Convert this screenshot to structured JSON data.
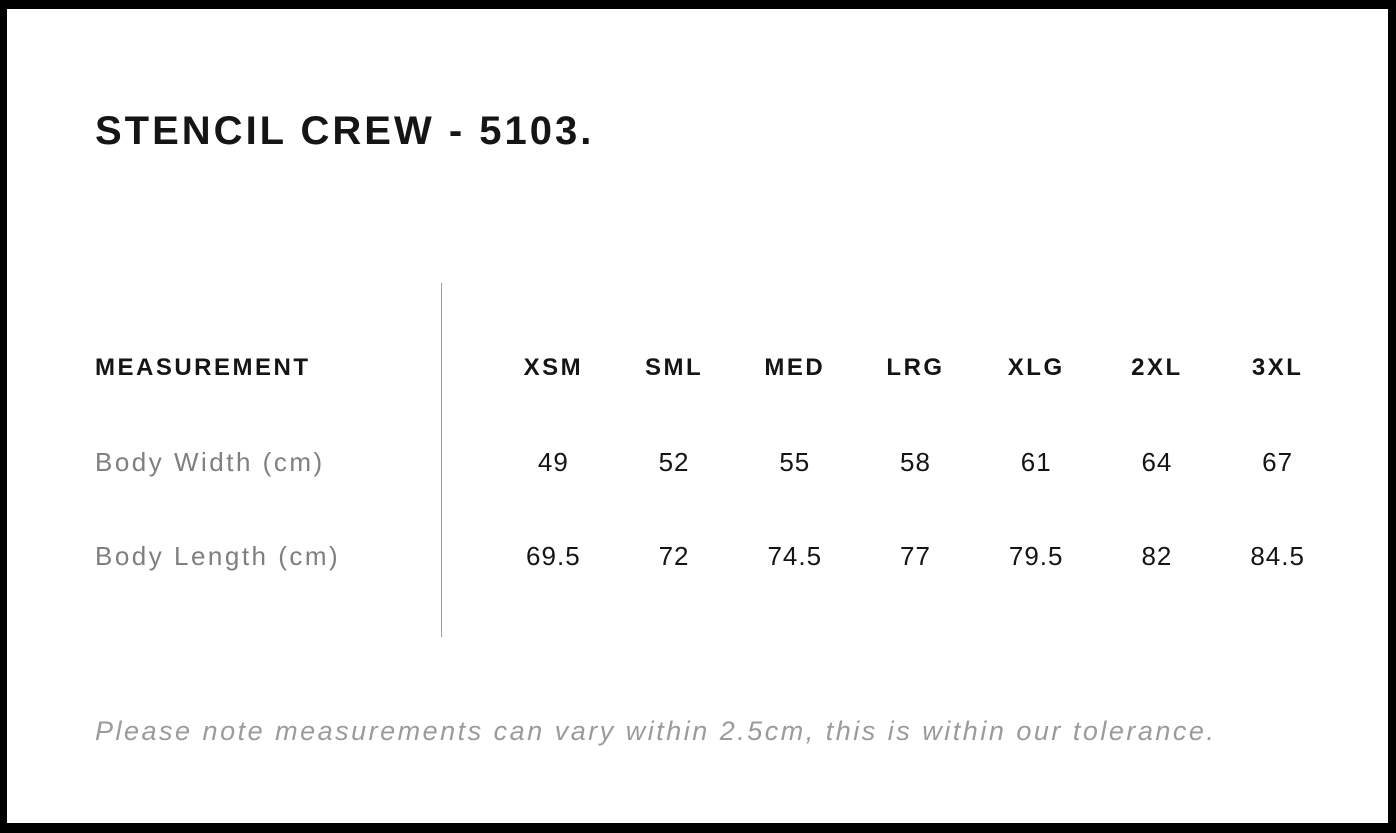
{
  "page": {
    "title": "STENCIL CREW - 5103.",
    "note": "Please note measurements can vary within 2.5cm, this is within our tolerance."
  },
  "size_chart": {
    "type": "table",
    "header_label": "MEASUREMENT",
    "sizes": [
      "XSM",
      "SML",
      "MED",
      "LRG",
      "XLG",
      "2XL",
      "3XL"
    ],
    "rows": [
      {
        "label": "Body Width (cm)",
        "values": [
          "49",
          "52",
          "55",
          "58",
          "61",
          "64",
          "67"
        ]
      },
      {
        "label": "Body Length (cm)",
        "values": [
          "69.5",
          "72",
          "74.5",
          "77",
          "79.5",
          "82",
          "84.5"
        ]
      }
    ]
  },
  "colors": {
    "frame_border": "#000000",
    "heading_text": "#151515",
    "row_label_gray": "#7f7f7f",
    "note_gray": "#9b9b9b",
    "divider_gray": "#9e9e9e",
    "background": "#ffffff"
  }
}
